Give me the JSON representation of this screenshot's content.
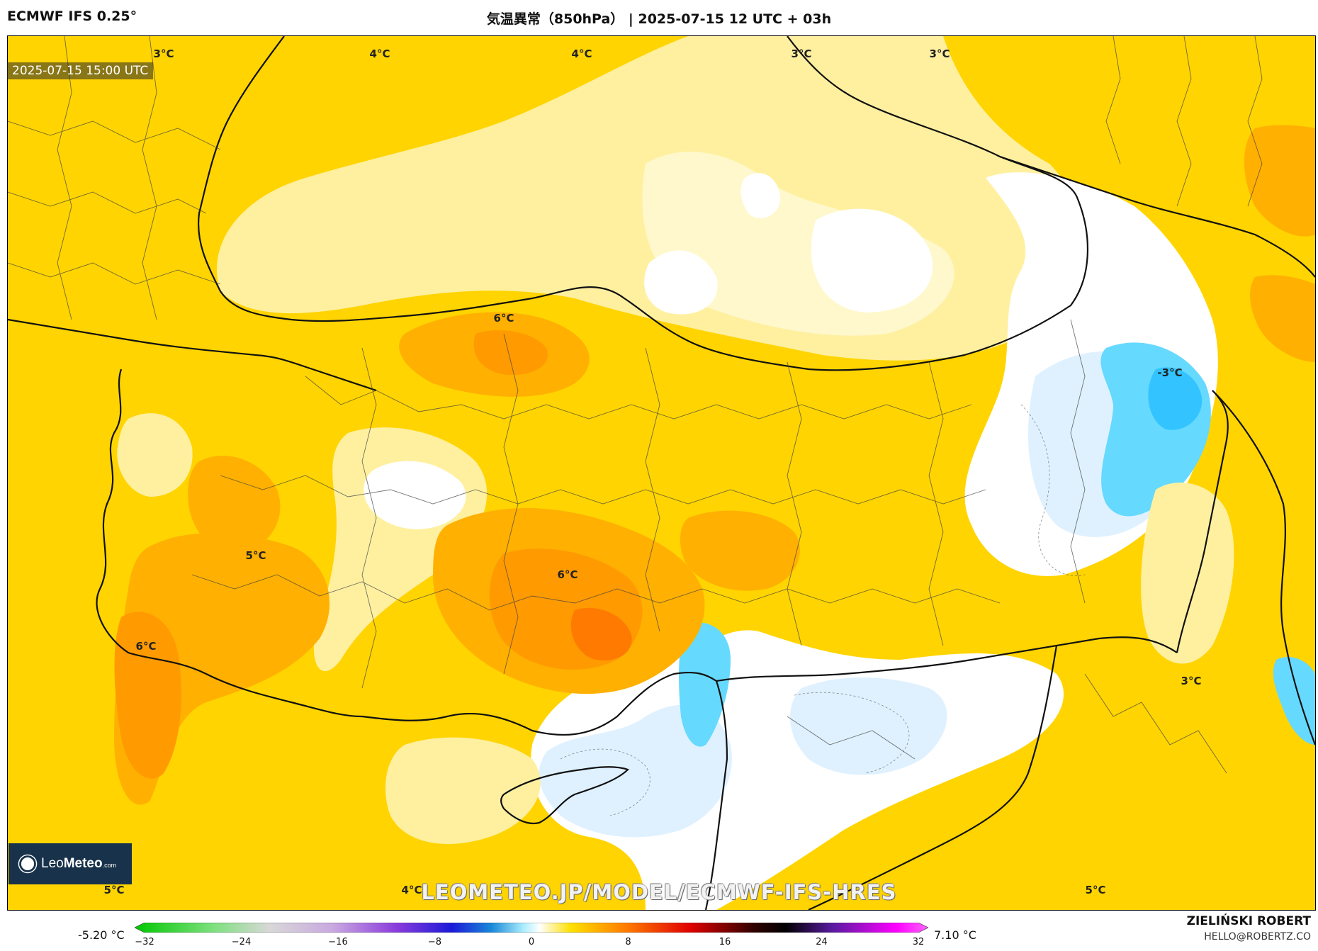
{
  "header": {
    "model": "ECMWF IFS 0.25°",
    "title": "気温異常（850hPa） | 2025-07-15 12 UTC + 03h"
  },
  "map": {
    "valid_time": "2025-07-15 15:00 UTC",
    "contour_labels": [
      "3°C",
      "4°C",
      "4°C",
      "3°C",
      "3°C",
      "6°C",
      "-3°C",
      "5°C",
      "6°C",
      "6°C",
      "3°C",
      "5°C",
      "4°C",
      "5°C"
    ],
    "colors": {
      "base": "#ffd400",
      "light_yellow": "#fff0a0",
      "pale": "#fff8cc",
      "white": "#ffffff",
      "orange": "#ffb000",
      "dark_orange": "#ff8c00",
      "red_orange": "#ff6a00",
      "light_blue": "#dff1ff",
      "blue": "#66d9ff",
      "cyan": "#00c8ff"
    }
  },
  "logo": {
    "name_light": "Leo",
    "name_bold": "Meteo",
    "suffix": ".com"
  },
  "watermark": "LEOMETEO.JP/MODEL/ECMWF-IFS-HRES",
  "colorbar": {
    "min_label": "-5.20 °C",
    "max_label": "7.10 °C",
    "ticks": [
      "−32",
      "−24",
      "−16",
      "−8",
      "0",
      "8",
      "16",
      "24",
      "32"
    ],
    "tick_values": [
      -32,
      -24,
      -16,
      -8,
      0,
      8,
      16,
      24,
      32
    ],
    "range": [
      -34,
      34
    ]
  },
  "credits": {
    "author": "ZIELIŃSKI ROBERT",
    "email": "HELLO@ROBERTZ.CO"
  }
}
